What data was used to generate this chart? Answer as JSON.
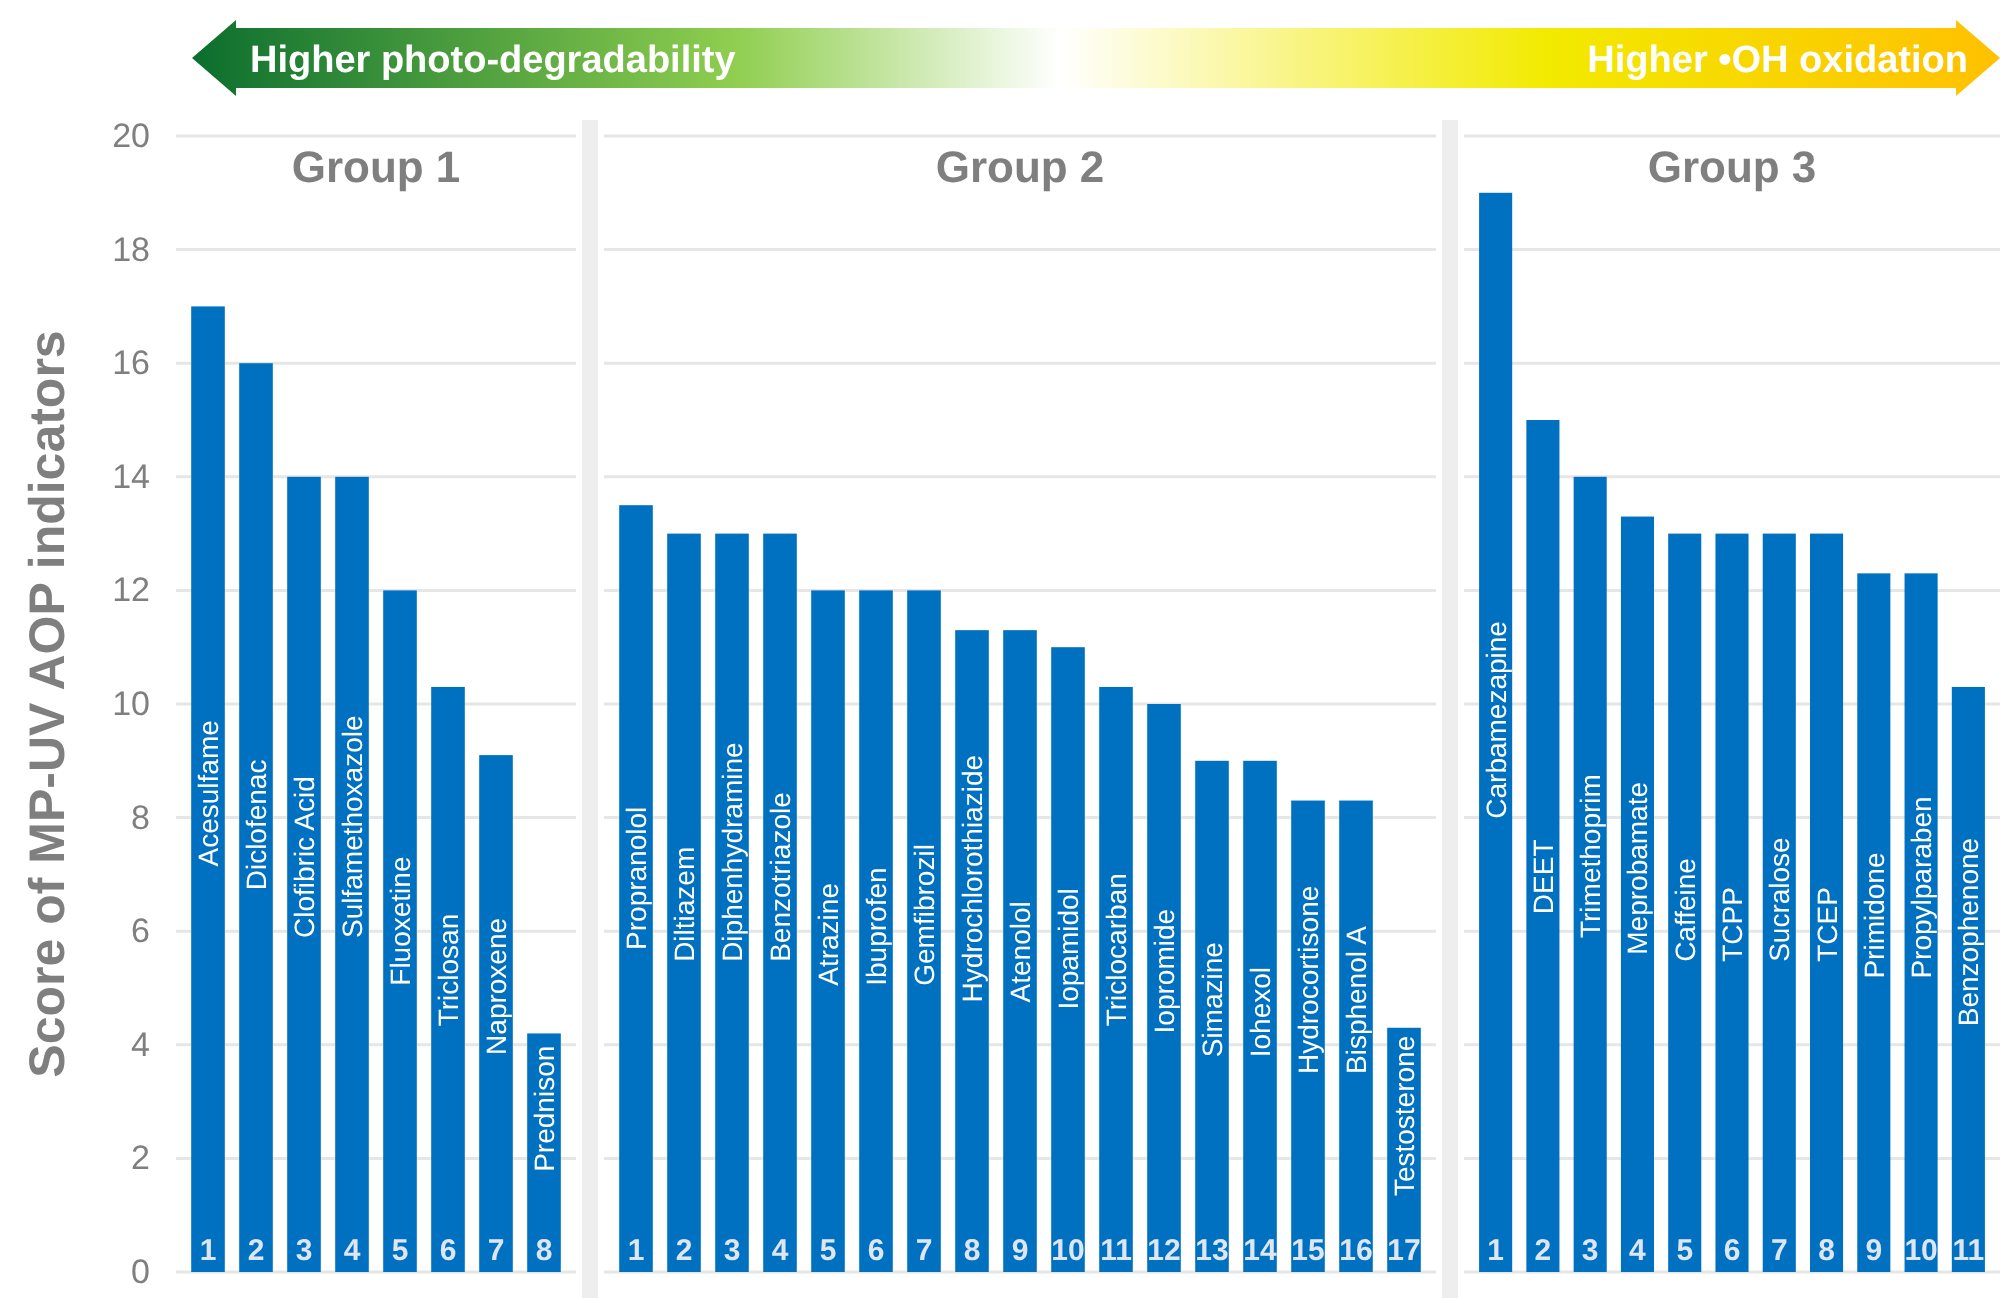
{
  "chart_data": [
    {
      "type": "bar",
      "title": "Group 1",
      "ylabel": "Score of MP-UV AOP indicators",
      "categories": [
        "Acesulfame",
        "Diclofenac",
        "Clofibric Acid",
        "Sulfamethoxazole",
        "Fluoxetine",
        "Triclosan",
        "Naproxene",
        "Prednison"
      ],
      "series": [
        {
          "color": "#0070c0",
          "values": [
            17,
            16,
            14,
            14,
            12,
            10.3,
            9.1,
            4.2
          ]
        }
      ],
      "ylim": [
        0,
        20
      ],
      "yticks": [
        0,
        2,
        4,
        6,
        8,
        10,
        12,
        14,
        16,
        18,
        20
      ],
      "grid": "y",
      "tick_labels": "y",
      "annotations": [
        "Higher photo-degradability",
        "Higher •OH oxidation",
        {
          "text": "1",
          "x": "Acesulfame",
          "y": 0
        },
        {
          "text": "2",
          "x": "Diclofenac",
          "y": 0
        },
        {
          "text": "3",
          "x": "Clofibric Acid",
          "y": 0
        },
        {
          "text": "4",
          "x": "Sulfamethoxazole",
          "y": 0
        },
        {
          "text": "5",
          "x": "Fluoxetine",
          "y": 0
        },
        {
          "text": "6",
          "x": "Triclosan",
          "y": 0
        },
        {
          "text": "7",
          "x": "Naproxene",
          "y": 0
        },
        {
          "text": "8",
          "x": "Prednison",
          "y": 0
        }
      ]
    },
    {
      "type": "bar",
      "title": "Group 2",
      "categories": [
        "Propranolol",
        "Diltiazem",
        "Diphenhydramine",
        "Benzotriazole",
        "Atrazine",
        "Ibuprofen",
        "Gemfibrozil",
        "Hydrochlorothiazide",
        "Atenolol",
        "Iopamidol",
        "Triclocarban",
        "Iopromide",
        "Simazine",
        "Iohexol",
        "Hydrocortisone",
        "Bisphenol A",
        "Testosterone"
      ],
      "series": [
        {
          "color": "#0070c0",
          "values": [
            13.5,
            13,
            13,
            13,
            12,
            12,
            12,
            11.3,
            11.3,
            11,
            10.3,
            10,
            9,
            9,
            8.3,
            8.3,
            4.3
          ]
        }
      ],
      "ylim": [
        0,
        20
      ],
      "yticks": [
        0,
        2,
        4,
        6,
        8,
        10,
        12,
        14,
        16,
        18,
        20
      ],
      "grid": "y",
      "tick_labels": false,
      "annotations": [
        {
          "text": "1",
          "x": "Propranolol",
          "y": 0
        },
        {
          "text": "2",
          "x": "Diltiazem",
          "y": 0
        },
        {
          "text": "3",
          "x": "Diphenhydramine",
          "y": 0
        },
        {
          "text": "4",
          "x": "Benzotriazole",
          "y": 0
        },
        {
          "text": "5",
          "x": "Atrazine",
          "y": 0
        },
        {
          "text": "6",
          "x": "Ibuprofen",
          "y": 0
        },
        {
          "text": "7",
          "x": "Gemfibrozil",
          "y": 0
        },
        {
          "text": "8",
          "x": "Hydrochlorothiazide",
          "y": 0
        },
        {
          "text": "9",
          "x": "Atenolol",
          "y": 0
        },
        {
          "text": "10",
          "x": "Iopamidol",
          "y": 0
        },
        {
          "text": "11",
          "x": "Triclocarban",
          "y": 0
        },
        {
          "text": "12",
          "x": "Iopromide",
          "y": 0
        },
        {
          "text": "13",
          "x": "Simazine",
          "y": 0
        },
        {
          "text": "14",
          "x": "Iohexol",
          "y": 0
        },
        {
          "text": "15",
          "x": "Hydrocortisone",
          "y": 0
        },
        {
          "text": "16",
          "x": "Bisphenol A",
          "y": 0
        },
        {
          "text": "17",
          "x": "Testosterone",
          "y": 0
        }
      ]
    },
    {
      "type": "bar",
      "title": "Group 3",
      "categories": [
        "Carbamezapine",
        "DEET",
        "Trimethoprim",
        "Meprobamate",
        "Caffeine",
        "TCPP",
        "Sucralose",
        "TCEP",
        "Primidone",
        "Propylparaben",
        "Benzophenone"
      ],
      "series": [
        {
          "color": "#0070c0",
          "values": [
            19,
            15,
            14,
            13.3,
            13,
            13,
            13,
            13,
            12.3,
            12.3,
            10.3
          ]
        }
      ],
      "ylim": [
        0,
        20
      ],
      "yticks": [
        0,
        2,
        4,
        6,
        8,
        10,
        12,
        14,
        16,
        18,
        20
      ],
      "grid": "y",
      "tick_labels": false,
      "annotations": [
        {
          "text": "1",
          "x": "Carbamezapine",
          "y": 0
        },
        {
          "text": "2",
          "x": "DEET",
          "y": 0
        },
        {
          "text": "3",
          "x": "Trimethoprim",
          "y": 0
        },
        {
          "text": "4",
          "x": "Meprobamate",
          "y": 0
        },
        {
          "text": "5",
          "x": "Caffeine",
          "y": 0
        },
        {
          "text": "6",
          "x": "TCPP",
          "y": 0
        },
        {
          "text": "7",
          "x": "Sucralose",
          "y": 0
        },
        {
          "text": "8",
          "x": "TCEP",
          "y": 0
        },
        {
          "text": "9",
          "x": "Primidone",
          "y": 0
        },
        {
          "text": "10",
          "x": "Propylparaben",
          "y": 0
        },
        {
          "text": "11",
          "x": "Benzophenone",
          "y": 0
        }
      ]
    }
  ]
}
